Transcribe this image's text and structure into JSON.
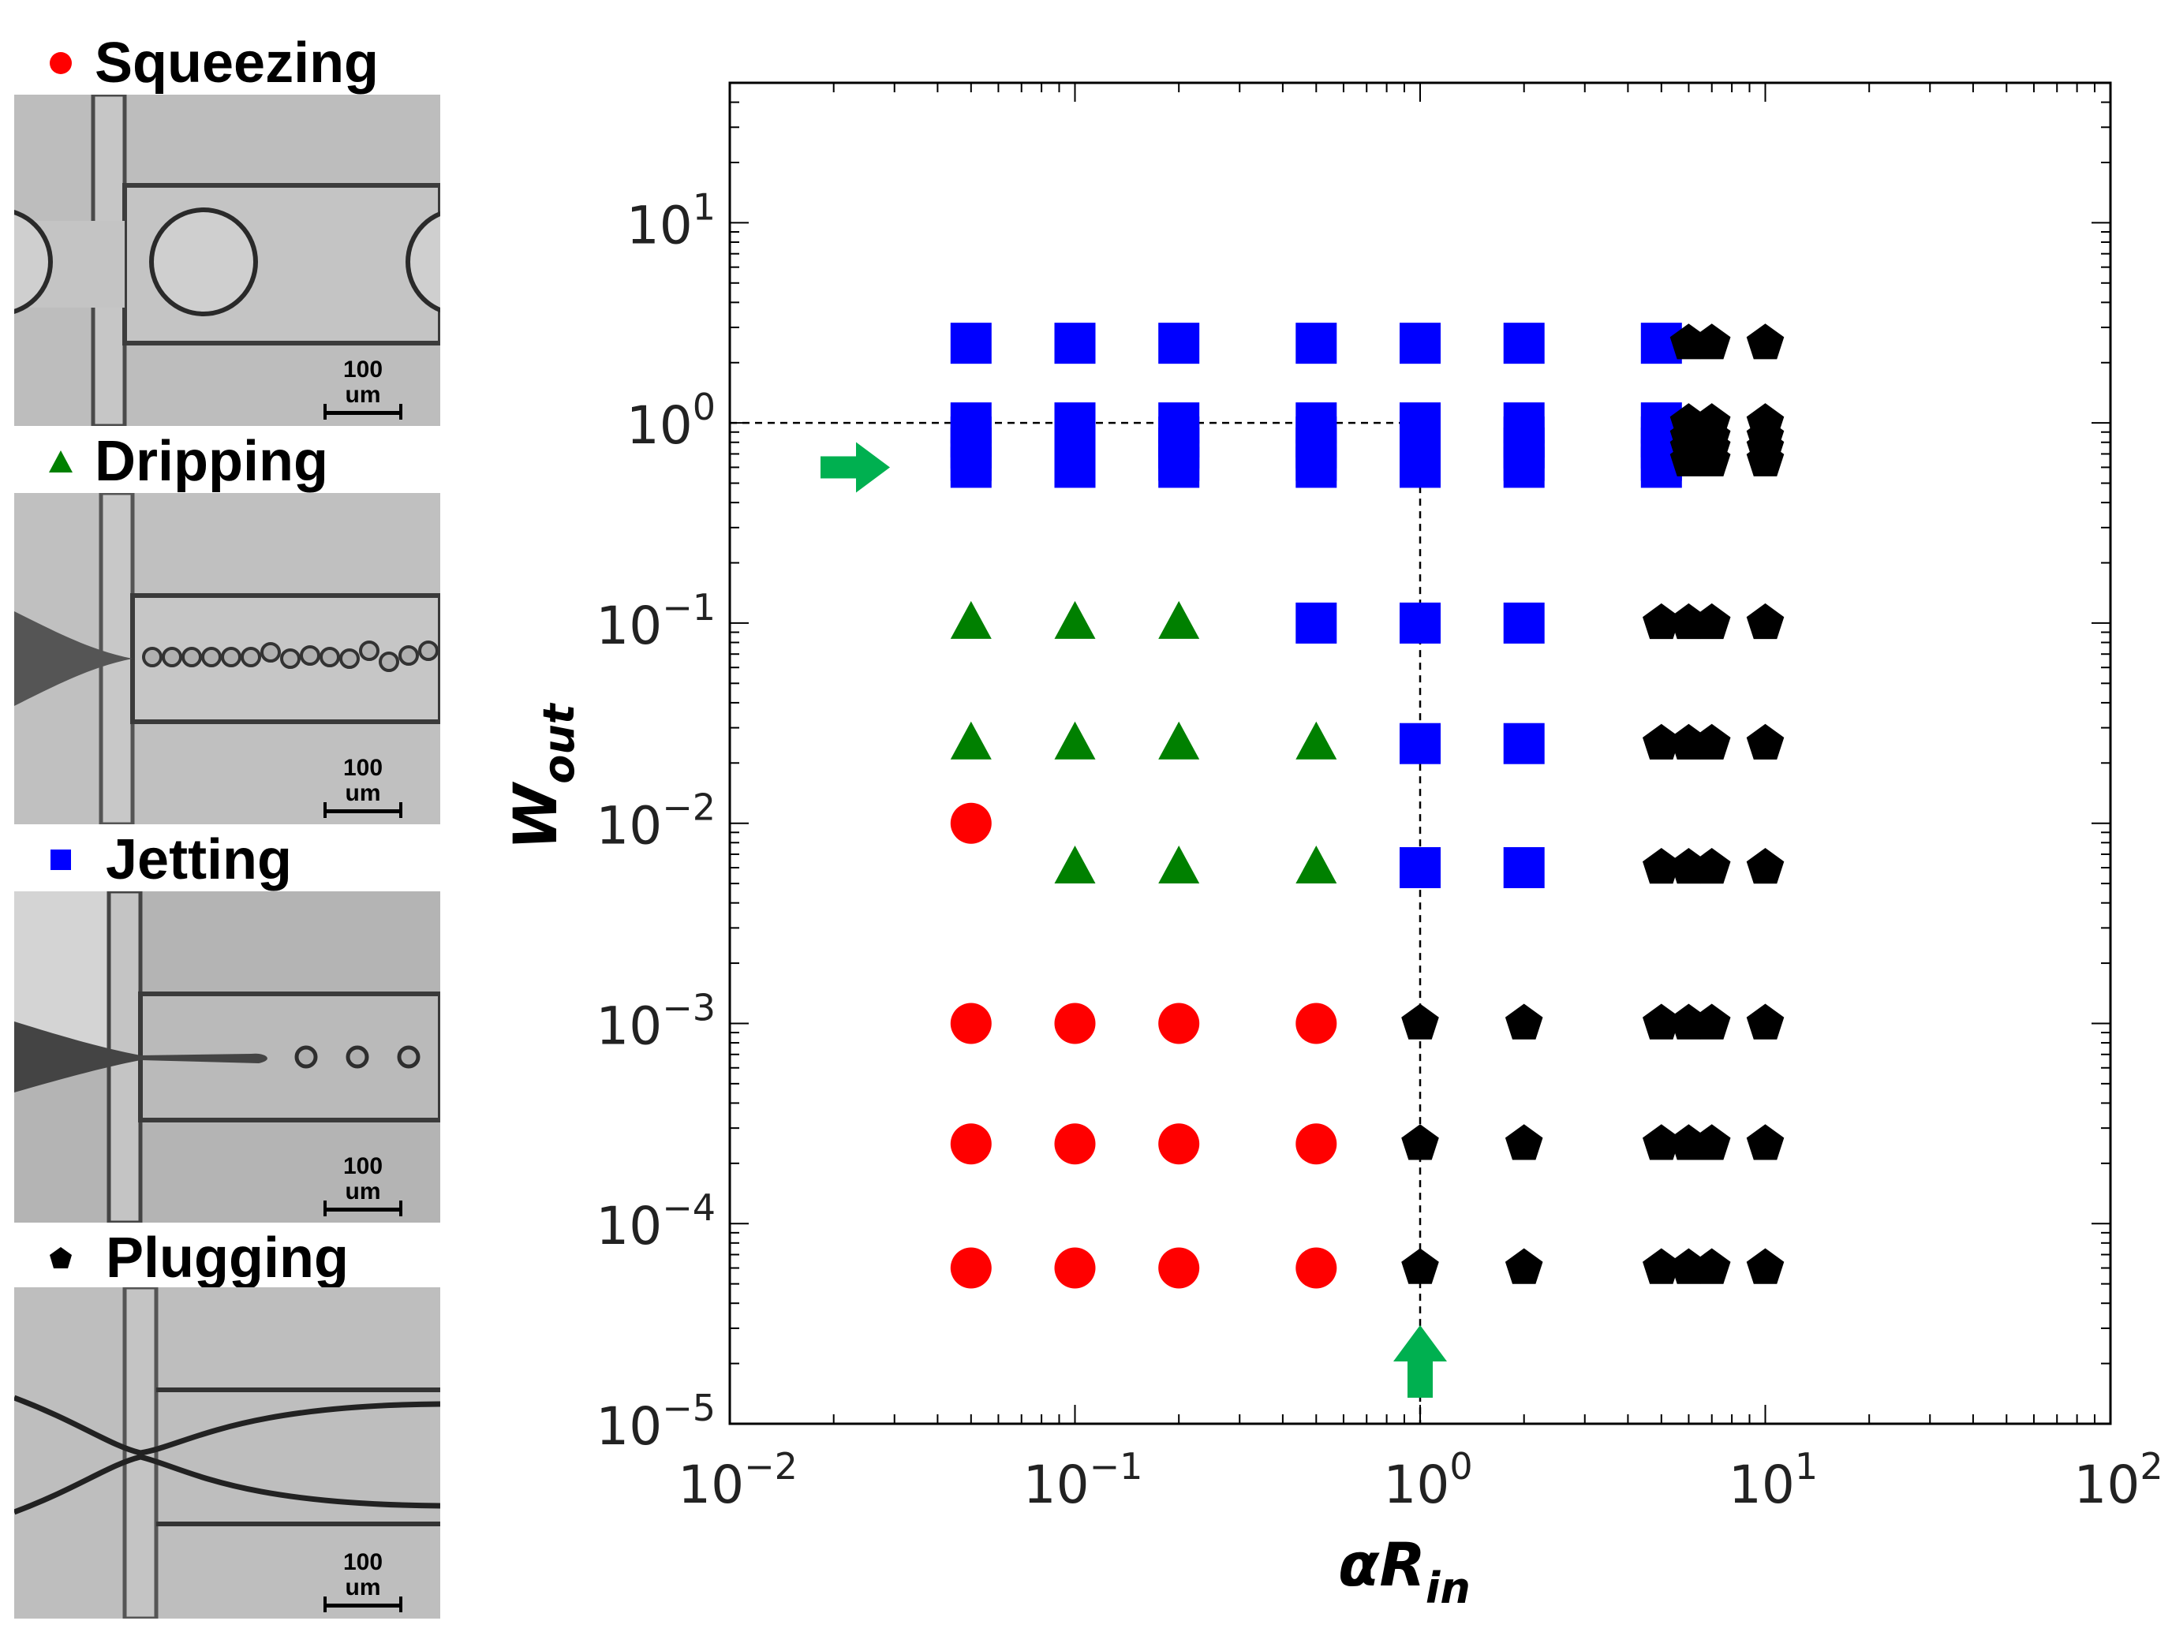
{
  "legend": [
    {
      "key": "squeezing",
      "label": "Squeezing",
      "marker": "circle",
      "color": "#ff0000"
    },
    {
      "key": "dripping",
      "label": "Dripping",
      "marker": "triangle",
      "color": "#008000"
    },
    {
      "key": "jetting",
      "label": "Jetting",
      "marker": "square",
      "color": "#0000ff"
    },
    {
      "key": "plugging",
      "label": "Plugging",
      "marker": "pentagon",
      "color": "#000000"
    }
  ],
  "panels": [
    {
      "scale_label": "100 um"
    },
    {
      "scale_label": "100 um"
    },
    {
      "scale_label": "100 um"
    },
    {
      "scale_label": "100 um"
    }
  ],
  "chart_data": {
    "type": "scatter",
    "xscale": "log",
    "yscale": "log",
    "xlim": [
      0.01,
      100
    ],
    "ylim": [
      1e-05,
      50
    ],
    "xticks": [
      {
        "value": 0.01,
        "base": "10",
        "exp": "−2"
      },
      {
        "value": 0.1,
        "base": "10",
        "exp": "−1"
      },
      {
        "value": 1,
        "base": "10",
        "exp": "0"
      },
      {
        "value": 10,
        "base": "10",
        "exp": "1"
      },
      {
        "value": 100,
        "base": "10",
        "exp": "2"
      }
    ],
    "yticks": [
      {
        "value": 1e-05,
        "base": "10",
        "exp": "−5"
      },
      {
        "value": 0.0001,
        "base": "10",
        "exp": "−4"
      },
      {
        "value": 0.001,
        "base": "10",
        "exp": "−3"
      },
      {
        "value": 0.01,
        "base": "10",
        "exp": "−2"
      },
      {
        "value": 0.1,
        "base": "10",
        "exp": "−1"
      },
      {
        "value": 1,
        "base": "10",
        "exp": "0"
      },
      {
        "value": 10,
        "base": "10",
        "exp": "1"
      }
    ],
    "xlabel": {
      "main": "αR",
      "sub": "in"
    },
    "ylabel": {
      "main": "W",
      "sub": "out"
    },
    "grid": false,
    "reference_lines": {
      "x": 1,
      "y": 1
    },
    "arrows": [
      {
        "direction": "right",
        "at_axis": "y",
        "value": 0.6
      },
      {
        "direction": "up",
        "at_axis": "x",
        "value": 1
      }
    ],
    "series": [
      {
        "key": "squeezing",
        "marker": "circle",
        "color": "#ff0000",
        "points": [
          [
            0.05,
            0.01
          ],
          [
            0.05,
            0.001
          ],
          [
            0.1,
            0.001
          ],
          [
            0.2,
            0.001
          ],
          [
            0.5,
            0.001
          ],
          [
            0.05,
            0.00025
          ],
          [
            0.1,
            0.00025
          ],
          [
            0.2,
            0.00025
          ],
          [
            0.5,
            0.00025
          ],
          [
            0.05,
            6e-05
          ],
          [
            0.1,
            6e-05
          ],
          [
            0.2,
            6e-05
          ],
          [
            0.5,
            6e-05
          ]
        ]
      },
      {
        "key": "dripping",
        "marker": "triangle",
        "color": "#008000",
        "points": [
          [
            0.05,
            0.1
          ],
          [
            0.1,
            0.1
          ],
          [
            0.2,
            0.1
          ],
          [
            0.05,
            0.025
          ],
          [
            0.1,
            0.025
          ],
          [
            0.2,
            0.025
          ],
          [
            0.5,
            0.025
          ],
          [
            0.1,
            0.006
          ],
          [
            0.2,
            0.006
          ],
          [
            0.5,
            0.006
          ]
        ]
      },
      {
        "key": "jetting",
        "marker": "square",
        "color": "#0000ff",
        "points": [
          [
            0.05,
            2.5
          ],
          [
            0.05,
            1
          ],
          [
            0.05,
            0.85
          ],
          [
            0.05,
            0.75
          ],
          [
            0.05,
            0.65
          ],
          [
            0.05,
            0.6
          ],
          [
            0.1,
            2.5
          ],
          [
            0.1,
            1
          ],
          [
            0.1,
            0.85
          ],
          [
            0.1,
            0.75
          ],
          [
            0.1,
            0.65
          ],
          [
            0.1,
            0.6
          ],
          [
            0.2,
            2.5
          ],
          [
            0.2,
            1
          ],
          [
            0.2,
            0.85
          ],
          [
            0.2,
            0.75
          ],
          [
            0.2,
            0.65
          ],
          [
            0.2,
            0.6
          ],
          [
            0.5,
            2.5
          ],
          [
            0.5,
            1
          ],
          [
            0.5,
            0.85
          ],
          [
            0.5,
            0.75
          ],
          [
            0.5,
            0.65
          ],
          [
            0.5,
            0.6
          ],
          [
            1,
            2.5
          ],
          [
            1,
            1
          ],
          [
            1,
            0.85
          ],
          [
            1,
            0.75
          ],
          [
            1,
            0.65
          ],
          [
            1,
            0.6
          ],
          [
            2,
            2.5
          ],
          [
            2,
            1
          ],
          [
            2,
            0.85
          ],
          [
            2,
            0.75
          ],
          [
            2,
            0.65
          ],
          [
            2,
            0.6
          ],
          [
            5,
            2.5
          ],
          [
            5,
            1
          ],
          [
            5,
            0.85
          ],
          [
            5,
            0.75
          ],
          [
            5,
            0.65
          ],
          [
            5,
            0.6
          ],
          [
            0.5,
            0.1
          ],
          [
            1,
            0.1
          ],
          [
            2,
            0.1
          ],
          [
            1,
            0.025
          ],
          [
            2,
            0.025
          ],
          [
            1,
            0.006
          ],
          [
            2,
            0.006
          ]
        ]
      },
      {
        "key": "plugging",
        "marker": "pentagon",
        "color": "#000000",
        "points": [
          [
            6,
            2.5
          ],
          [
            7,
            2.5
          ],
          [
            10,
            2.5
          ],
          [
            6,
            1
          ],
          [
            7,
            1
          ],
          [
            10,
            1
          ],
          [
            6,
            0.85
          ],
          [
            7,
            0.85
          ],
          [
            10,
            0.85
          ],
          [
            6,
            0.75
          ],
          [
            7,
            0.75
          ],
          [
            10,
            0.75
          ],
          [
            6,
            0.65
          ],
          [
            7,
            0.65
          ],
          [
            10,
            0.65
          ],
          [
            5,
            0.1
          ],
          [
            6,
            0.1
          ],
          [
            7,
            0.1
          ],
          [
            10,
            0.1
          ],
          [
            5,
            0.025
          ],
          [
            6,
            0.025
          ],
          [
            7,
            0.025
          ],
          [
            10,
            0.025
          ],
          [
            5,
            0.006
          ],
          [
            6,
            0.006
          ],
          [
            7,
            0.006
          ],
          [
            10,
            0.006
          ],
          [
            1,
            0.001
          ],
          [
            2,
            0.001
          ],
          [
            5,
            0.001
          ],
          [
            6,
            0.001
          ],
          [
            7,
            0.001
          ],
          [
            10,
            0.001
          ],
          [
            1,
            0.00025
          ],
          [
            2,
            0.00025
          ],
          [
            5,
            0.00025
          ],
          [
            6,
            0.00025
          ],
          [
            7,
            0.00025
          ],
          [
            10,
            0.00025
          ],
          [
            1,
            6e-05
          ],
          [
            2,
            6e-05
          ],
          [
            5,
            6e-05
          ],
          [
            6,
            6e-05
          ],
          [
            7,
            6e-05
          ],
          [
            10,
            6e-05
          ]
        ]
      }
    ]
  }
}
